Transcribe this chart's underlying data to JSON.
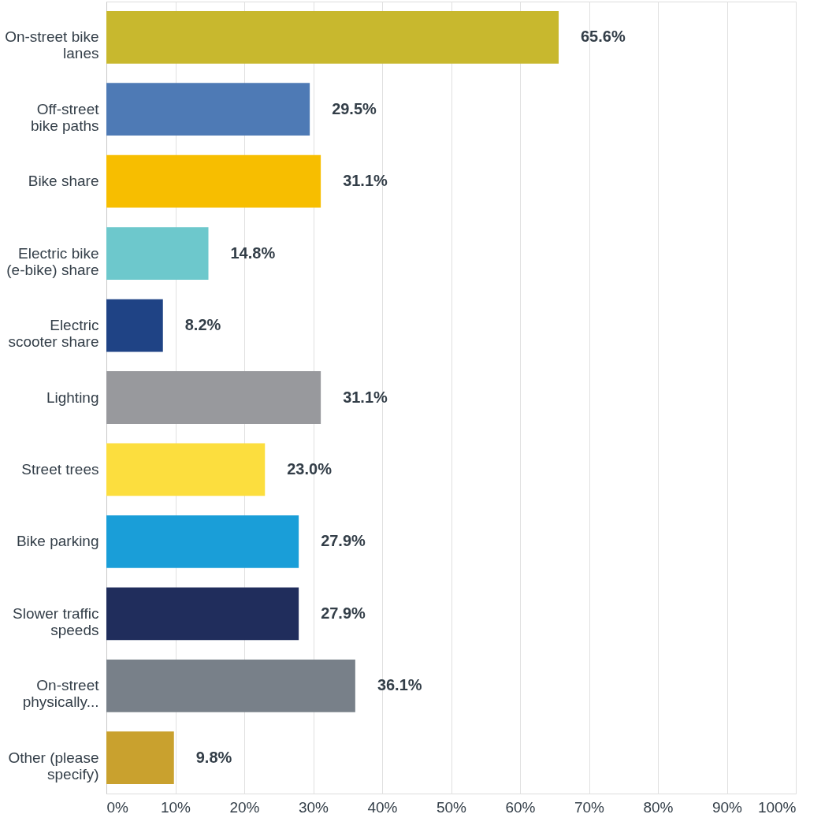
{
  "chart_data": {
    "type": "bar",
    "orientation": "horizontal",
    "categories": [
      "On-street bike\nlanes",
      "Off-street\nbike paths",
      "Bike share",
      "Electric bike\n(e-bike) share",
      "Electric\nscooter share",
      "Lighting",
      "Street trees",
      "Bike parking",
      "Slower traffic\nspeeds",
      "On-street\nphysically...",
      "Other (please\nspecify)"
    ],
    "values": [
      65.6,
      29.5,
      31.1,
      14.8,
      8.2,
      31.1,
      23.0,
      27.9,
      27.9,
      36.1,
      9.8
    ],
    "value_labels": [
      "65.6%",
      "29.5%",
      "31.1%",
      "14.8%",
      "8.2%",
      "31.1%",
      "23.0%",
      "27.9%",
      "27.9%",
      "36.1%",
      "9.8%"
    ],
    "colors": [
      "#c8b82e",
      "#4e7ab5",
      "#f7be00",
      "#6dc8cc",
      "#1f4385",
      "#98999d",
      "#fcde3e",
      "#1a9ed8",
      "#202d5c",
      "#788089",
      "#c9a12e"
    ],
    "xlim": [
      0,
      100
    ],
    "xticks": [
      {
        "value": 0,
        "label": "0%"
      },
      {
        "value": 10,
        "label": "10%"
      },
      {
        "value": 20,
        "label": "20%"
      },
      {
        "value": 30,
        "label": "30%"
      },
      {
        "value": 40,
        "label": "40%"
      },
      {
        "value": 50,
        "label": "50%"
      },
      {
        "value": 60,
        "label": "60%"
      },
      {
        "value": 70,
        "label": "70%"
      },
      {
        "value": 80,
        "label": "80%"
      },
      {
        "value": 90,
        "label": "90%"
      },
      {
        "value": 100,
        "label": "100%"
      }
    ],
    "grid": "x"
  }
}
